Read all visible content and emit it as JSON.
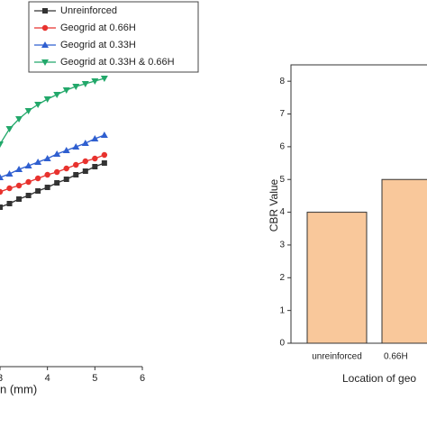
{
  "chart_data": [
    {
      "type": "line",
      "x_label": "n (mm)",
      "x": [
        3.0,
        3.2,
        3.4,
        3.6,
        3.8,
        4.0,
        4.2,
        4.4,
        4.6,
        4.8,
        5.0,
        5.2
      ],
      "xlim": [
        3,
        6
      ],
      "xticks": [
        3,
        4,
        5,
        6
      ],
      "ylim": [
        0,
        407
      ],
      "legend": "upper left",
      "series": [
        {
          "name": "Unreinforced",
          "color": "#333333",
          "marker": "square",
          "values": [
            177,
            181,
            186,
            190,
            195,
            199,
            204,
            208,
            213,
            217,
            222,
            226
          ]
        },
        {
          "name": "Geogrid at 0.66H",
          "color": "#e8322e",
          "marker": "circle",
          "values": [
            194,
            198,
            201,
            205,
            209,
            213,
            216,
            220,
            224,
            228,
            231,
            235
          ]
        },
        {
          "name": "Geogrid at 0.33H",
          "color": "#2f5fd0",
          "marker": "triangle-up",
          "values": [
            210,
            214,
            219,
            223,
            227,
            231,
            236,
            240,
            244,
            248,
            253,
            257
          ]
        },
        {
          "name": "Geogrid at 0.33H & 0.66H",
          "color": "#22a86a",
          "marker": "triangle-down",
          "values": [
            247,
            264,
            275,
            284,
            291,
            297,
            302,
            307,
            311,
            314,
            317,
            320
          ]
        }
      ]
    },
    {
      "type": "bar",
      "y_label": "CBR Value",
      "x_label": "Location of geo",
      "categories": [
        "unreinforced",
        "0.66H"
      ],
      "values": [
        4,
        5
      ],
      "color": "#f9c89b",
      "ylim": [
        0,
        8.5
      ],
      "yticks": [
        0,
        1,
        2,
        3,
        4,
        5,
        6,
        7,
        8
      ]
    }
  ]
}
